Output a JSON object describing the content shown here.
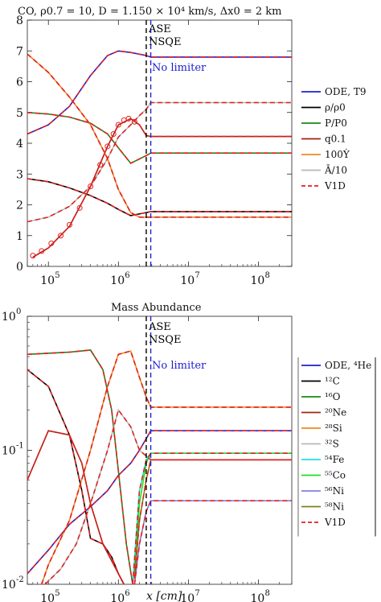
{
  "chart_data": [
    {
      "type": "line",
      "title": "CO, ρ0.7 = 10, D = 1.150 × 10⁴ km/s, Δx0 = 2 km",
      "xscale": "log",
      "xlim": [
        50000,
        300000000
      ],
      "ylim": [
        0,
        8
      ],
      "yticks": [
        0,
        1,
        2,
        3,
        4,
        5,
        6,
        7,
        8
      ],
      "xticks": [
        {
          "value": 100000,
          "base": "10",
          "exp": "5"
        },
        {
          "value": 1000000,
          "base": "10",
          "exp": "6"
        },
        {
          "value": 10000000,
          "base": "10",
          "exp": "7"
        },
        {
          "value": 100000000,
          "base": "10",
          "exp": "8"
        }
      ],
      "legend_position": "right",
      "legend": [
        {
          "label": "ODE, T9",
          "color": "#1f1fd0",
          "dash": false
        },
        {
          "label": "ρ/ρ0",
          "color": "#000000",
          "dash": false
        },
        {
          "label": "P/P0",
          "color": "#1a8a1a",
          "dash": false
        },
        {
          "label": "q0.1",
          "color": "#a02510",
          "dash": false
        },
        {
          "label": "100Ẏ",
          "color": "#f08a20",
          "dash": false
        },
        {
          "label": "Ā/10",
          "color": "#b8b8b8",
          "dash": false
        },
        {
          "label": "V1D",
          "color": "#e02020",
          "dash": true
        }
      ],
      "annotations": [
        {
          "text": "ASE",
          "x": 2500000,
          "color": "#000000"
        },
        {
          "text": "NSQE",
          "x": 2500000,
          "color": "#000000"
        },
        {
          "text": "No limiter",
          "x": 2900000,
          "color": "#1f1fd0"
        }
      ],
      "vlines": [
        {
          "x": 2500000,
          "color": "#000000"
        },
        {
          "x": 2900000,
          "color": "#1f1fd0"
        }
      ],
      "series": [
        {
          "name": "ODE, T9",
          "color": "#1f1fd0",
          "x": [
            50000,
            100000,
            200000,
            400000,
            700000,
            1000000,
            1500000,
            2500000,
            2900000,
            300000000
          ],
          "y": [
            4.3,
            4.6,
            5.2,
            6.2,
            6.85,
            7.0,
            6.95,
            6.85,
            6.8,
            6.8
          ]
        },
        {
          "name": "ρ/ρ0",
          "color": "#000000",
          "x": [
            50000,
            100000,
            200000,
            400000,
            700000,
            1000000,
            1500000,
            2500000,
            2900000,
            300000000
          ],
          "y": [
            2.85,
            2.75,
            2.55,
            2.3,
            2.05,
            1.85,
            1.65,
            1.75,
            1.78,
            1.78
          ]
        },
        {
          "name": "P/P0",
          "color": "#1a8a1a",
          "x": [
            50000,
            100000,
            200000,
            400000,
            700000,
            1000000,
            1500000,
            2500000,
            2900000,
            300000000
          ],
          "y": [
            5.0,
            4.95,
            4.85,
            4.65,
            4.3,
            3.85,
            3.35,
            3.6,
            3.68,
            3.68
          ]
        },
        {
          "name": "q0.1",
          "color": "#a02510",
          "x": [
            60000,
            100000,
            200000,
            400000,
            700000,
            1000000,
            1500000,
            2000000,
            2500000,
            2900000,
            300000000
          ],
          "y": [
            0.3,
            0.6,
            1.3,
            2.6,
            3.9,
            4.6,
            4.8,
            4.6,
            4.25,
            4.22,
            4.22
          ]
        },
        {
          "name": "100Ẏ",
          "color": "#f08a20",
          "x": [
            50000,
            100000,
            200000,
            400000,
            700000,
            1000000,
            1500000,
            2000000,
            2500000,
            2900000,
            300000000
          ],
          "y": [
            6.9,
            6.3,
            5.5,
            4.6,
            3.5,
            2.5,
            1.75,
            1.6,
            1.6,
            1.6,
            1.6
          ]
        },
        {
          "name": "Ā/10",
          "color": "#b8b8b8",
          "x": [
            50000,
            100000,
            200000,
            400000,
            700000,
            1000000,
            1500000,
            2000000,
            2500000,
            2900000,
            300000000
          ],
          "y": [
            1.45,
            1.6,
            1.95,
            2.6,
            3.5,
            4.2,
            4.6,
            4.9,
            5.1,
            5.32,
            5.32
          ]
        }
      ],
      "v1d_series": [
        {
          "x": [
            50000,
            100000,
            200000,
            400000,
            700000,
            1000000,
            1500000,
            2500000,
            2900000,
            300000000
          ],
          "y": [
            4.3,
            4.6,
            5.2,
            6.2,
            6.85,
            7.0,
            6.95,
            6.85,
            6.8,
            6.8
          ]
        },
        {
          "x": [
            50000,
            100000,
            200000,
            400000,
            700000,
            1000000,
            1500000,
            2500000,
            2900000,
            300000000
          ],
          "y": [
            2.85,
            2.75,
            2.55,
            2.3,
            2.05,
            1.85,
            1.65,
            1.75,
            1.78,
            1.78
          ]
        },
        {
          "x": [
            50000,
            100000,
            200000,
            400000,
            700000,
            1000000,
            1500000,
            2500000,
            2900000,
            300000000
          ],
          "y": [
            5.0,
            4.95,
            4.85,
            4.65,
            4.3,
            3.85,
            3.35,
            3.6,
            3.68,
            3.68
          ]
        },
        {
          "x": [
            60000,
            100000,
            200000,
            400000,
            700000,
            1000000,
            1500000,
            2000000,
            2500000,
            2900000,
            300000000
          ],
          "y": [
            0.3,
            0.6,
            1.3,
            2.6,
            3.9,
            4.6,
            4.8,
            4.6,
            4.25,
            4.22,
            4.22
          ]
        },
        {
          "x": [
            50000,
            100000,
            200000,
            400000,
            700000,
            1000000,
            1500000,
            2000000,
            2500000,
            2900000,
            300000000
          ],
          "y": [
            6.9,
            6.3,
            5.5,
            4.6,
            3.5,
            2.5,
            1.75,
            1.6,
            1.6,
            1.6,
            1.6
          ]
        },
        {
          "x": [
            50000,
            100000,
            200000,
            400000,
            700000,
            1000000,
            1500000,
            2000000,
            2500000,
            2900000,
            300000000
          ],
          "y": [
            1.45,
            1.6,
            1.95,
            2.6,
            3.5,
            4.2,
            4.6,
            4.9,
            5.1,
            5.32,
            5.32
          ]
        }
      ],
      "markers": {
        "color": "#e02020",
        "x": [
          60000,
          80000,
          110000,
          150000,
          200000,
          280000,
          400000,
          550000,
          700000,
          850000,
          1000000,
          1200000,
          1400000,
          1700000
        ],
        "y": [
          0.35,
          0.5,
          0.75,
          1.0,
          1.35,
          1.9,
          2.6,
          3.3,
          3.9,
          4.3,
          4.6,
          4.75,
          4.8,
          4.7
        ]
      }
    },
    {
      "type": "line",
      "title": "Mass Abundance",
      "xscale": "log",
      "yscale": "log",
      "xlim": [
        50000,
        300000000
      ],
      "ylim": [
        0.01,
        1
      ],
      "yticks": [
        {
          "value": 0.01,
          "base": "10",
          "exp": "-2"
        },
        {
          "value": 0.1,
          "base": "10",
          "exp": "-1"
        },
        {
          "value": 1,
          "base": "10",
          "exp": "0"
        }
      ],
      "xticks": [
        {
          "value": 100000,
          "base": "10",
          "exp": "5"
        },
        {
          "value": 1000000,
          "base": "10",
          "exp": "6"
        },
        {
          "value": 10000000,
          "base": "10",
          "exp": "7"
        },
        {
          "value": 100000000,
          "base": "10",
          "exp": "8"
        }
      ],
      "xlabel": "x [cm]",
      "legend_position": "right",
      "legend": [
        {
          "label": "ODE, ⁴He",
          "color": "#1f1fd0",
          "dash": false
        },
        {
          "label": "¹²C",
          "color": "#000000",
          "dash": false
        },
        {
          "label": "¹⁶O",
          "color": "#1a8a1a",
          "dash": false
        },
        {
          "label": "²⁰Ne",
          "color": "#a02510",
          "dash": false
        },
        {
          "label": "²⁸Si",
          "color": "#f08a20",
          "dash": false
        },
        {
          "label": "³²S",
          "color": "#b8b8b8",
          "dash": false
        },
        {
          "label": "⁵⁴Fe",
          "color": "#20e0e0",
          "dash": false
        },
        {
          "label": "⁵⁵Co",
          "color": "#20e020",
          "dash": false
        },
        {
          "label": "⁵⁶Ni",
          "color": "#8080e0",
          "dash": false
        },
        {
          "label": "⁵⁸Ni",
          "color": "#808020",
          "dash": false
        },
        {
          "label": "V1D",
          "color": "#e02020",
          "dash": true
        }
      ],
      "annotations": [
        {
          "text": "ASE",
          "x": 2500000,
          "color": "#000000"
        },
        {
          "text": "NSQE",
          "x": 2500000,
          "color": "#000000"
        },
        {
          "text": "No limiter",
          "x": 2900000,
          "color": "#1f1fd0"
        }
      ],
      "vlines": [
        {
          "x": 2500000,
          "color": "#000000"
        },
        {
          "x": 2900000,
          "color": "#1f1fd0"
        }
      ],
      "series": [
        {
          "name": "ODE, ⁴He",
          "color": "#1f1fd0",
          "x": [
            50000,
            100000,
            200000,
            400000,
            700000,
            1000000,
            1500000,
            2000000,
            2900000,
            300000000
          ],
          "y": [
            0.012,
            0.018,
            0.028,
            0.038,
            0.05,
            0.065,
            0.08,
            0.1,
            0.14,
            0.14
          ]
        },
        {
          "name": "¹²C",
          "color": "#000000",
          "x": [
            50000,
            100000,
            200000,
            300000,
            400000,
            600000,
            800000,
            1000000,
            1200000
          ],
          "y": [
            0.4,
            0.3,
            0.13,
            0.05,
            0.022,
            0.02,
            0.016,
            0.012,
            0.01
          ]
        },
        {
          "name": "¹⁶O",
          "color": "#1a8a1a",
          "x": [
            50000,
            100000,
            200000,
            400000,
            600000,
            800000,
            1000000,
            1300000,
            1600000
          ],
          "y": [
            0.52,
            0.53,
            0.54,
            0.56,
            0.4,
            0.2,
            0.07,
            0.02,
            0.01
          ]
        },
        {
          "name": "²⁰Ne",
          "color": "#a02510",
          "x": [
            50000,
            100000,
            200000,
            300000,
            400000,
            600000,
            800000,
            1000000,
            1200000
          ],
          "y": [
            0.06,
            0.14,
            0.13,
            0.08,
            0.04,
            0.02,
            0.015,
            0.012,
            0.01
          ]
        },
        {
          "name": "²⁸Si",
          "color": "#f08a20",
          "x": [
            80000,
            100000,
            200000,
            400000,
            700000,
            1000000,
            1500000,
            2000000,
            2500000,
            2900000,
            300000000
          ],
          "y": [
            0.01,
            0.014,
            0.03,
            0.1,
            0.3,
            0.52,
            0.55,
            0.35,
            0.25,
            0.21,
            0.21
          ]
        },
        {
          "name": "³²S",
          "color": "#b8b8b8",
          "x": [
            90000,
            150000,
            250000,
            400000,
            700000,
            1000000,
            1500000,
            2000000,
            2900000,
            300000000
          ],
          "y": [
            0.01,
            0.013,
            0.02,
            0.04,
            0.1,
            0.2,
            0.15,
            0.1,
            0.085,
            0.085
          ]
        },
        {
          "name": "⁵⁴Fe",
          "color": "#20e0e0",
          "x": [
            1600000,
            2000000,
            2500000,
            2900000,
            300000000
          ],
          "y": [
            0.01,
            0.05,
            0.085,
            0.095,
            0.095
          ]
        },
        {
          "name": "⁵⁵Co",
          "color": "#20e020",
          "x": [
            1700000,
            2000000,
            2500000,
            2900000,
            300000000
          ],
          "y": [
            0.012,
            0.04,
            0.08,
            0.095,
            0.095
          ]
        },
        {
          "name": "⁵⁶Ni",
          "color": "#8080e0",
          "x": [
            1700000,
            2000000,
            2500000,
            2900000,
            300000000
          ],
          "y": [
            0.01,
            0.02,
            0.035,
            0.042,
            0.042
          ]
        },
        {
          "name": "⁵⁸Ni",
          "color": "#808020",
          "x": [
            1700000,
            2000000,
            2500000,
            2900000,
            300000000
          ],
          "y": [
            0.011,
            0.03,
            0.06,
            0.085,
            0.085
          ]
        }
      ],
      "v1d_series": [
        {
          "x": [
            50000,
            100000,
            200000,
            400000,
            700000,
            1000000,
            1500000,
            2000000,
            2900000,
            300000000
          ],
          "y": [
            0.012,
            0.018,
            0.028,
            0.038,
            0.05,
            0.065,
            0.08,
            0.1,
            0.14,
            0.14
          ]
        },
        {
          "x": [
            50000,
            100000,
            200000,
            300000,
            400000,
            600000,
            800000,
            1000000,
            1200000
          ],
          "y": [
            0.4,
            0.3,
            0.13,
            0.05,
            0.022,
            0.02,
            0.016,
            0.012,
            0.01
          ]
        },
        {
          "x": [
            50000,
            100000,
            200000,
            400000,
            600000,
            800000,
            1000000,
            1300000,
            1600000
          ],
          "y": [
            0.52,
            0.53,
            0.54,
            0.56,
            0.4,
            0.2,
            0.07,
            0.02,
            0.01
          ]
        },
        {
          "x": [
            50000,
            100000,
            200000,
            300000,
            400000,
            600000,
            800000,
            1000000,
            1200000
          ],
          "y": [
            0.06,
            0.14,
            0.13,
            0.08,
            0.04,
            0.02,
            0.015,
            0.012,
            0.01
          ]
        },
        {
          "x": [
            80000,
            100000,
            200000,
            400000,
            700000,
            1000000,
            1500000,
            2000000,
            2500000,
            2900000,
            300000000
          ],
          "y": [
            0.01,
            0.014,
            0.03,
            0.1,
            0.3,
            0.52,
            0.55,
            0.35,
            0.25,
            0.21,
            0.21
          ]
        },
        {
          "x": [
            90000,
            150000,
            250000,
            400000,
            700000,
            1000000,
            1500000,
            2000000,
            2900000,
            300000000
          ],
          "y": [
            0.01,
            0.013,
            0.02,
            0.04,
            0.1,
            0.2,
            0.15,
            0.1,
            0.085,
            0.085
          ]
        },
        {
          "x": [
            1600000,
            2000000,
            2500000,
            2900000,
            300000000
          ],
          "y": [
            0.01,
            0.05,
            0.085,
            0.095,
            0.095
          ]
        },
        {
          "x": [
            1700000,
            2000000,
            2500000,
            2900000,
            300000000
          ],
          "y": [
            0.011,
            0.03,
            0.06,
            0.085,
            0.085
          ]
        },
        {
          "x": [
            1700000,
            2000000,
            2500000,
            2900000,
            300000000
          ],
          "y": [
            0.01,
            0.02,
            0.035,
            0.042,
            0.042
          ]
        }
      ]
    }
  ]
}
